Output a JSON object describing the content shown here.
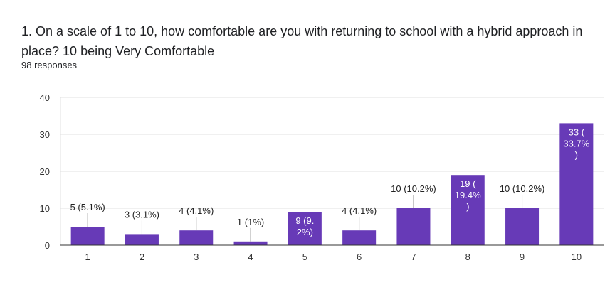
{
  "question": {
    "title": "1. On a scale of 1 to 10, how comfortable are you with returning to school with a hybrid approach in place? 10 being Very Comfortable",
    "responses": "98 responses"
  },
  "colors": {
    "bar": "#673ab7",
    "grid": "#e0e0e0",
    "axis": "#333333",
    "label_outside": "#222222",
    "label_inside": "#ffffff"
  },
  "chart_data": {
    "type": "bar",
    "title": "",
    "xlabel": "",
    "ylabel": "",
    "ylim": [
      0,
      40
    ],
    "yticks": [
      0,
      10,
      20,
      30,
      40
    ],
    "grid": true,
    "categories": [
      "1",
      "2",
      "3",
      "4",
      "5",
      "6",
      "7",
      "8",
      "9",
      "10"
    ],
    "values": [
      5,
      3,
      4,
      1,
      9,
      4,
      10,
      19,
      10,
      33
    ],
    "labels": [
      [
        "5 (5.1%)"
      ],
      [
        "3 (3.1%)"
      ],
      [
        "4 (4.1%)"
      ],
      [
        "1 (1%)"
      ],
      [
        "9 (9.",
        "2%)"
      ],
      [
        "4 (4.1%)"
      ],
      [
        "10 (10.2%)"
      ],
      [
        "19 (",
        "19.4%",
        ")"
      ],
      [
        "10 (10.2%)"
      ],
      [
        "33 (",
        "33.7%",
        ")"
      ]
    ],
    "label_inside": [
      false,
      false,
      false,
      false,
      true,
      false,
      false,
      true,
      false,
      true
    ]
  }
}
